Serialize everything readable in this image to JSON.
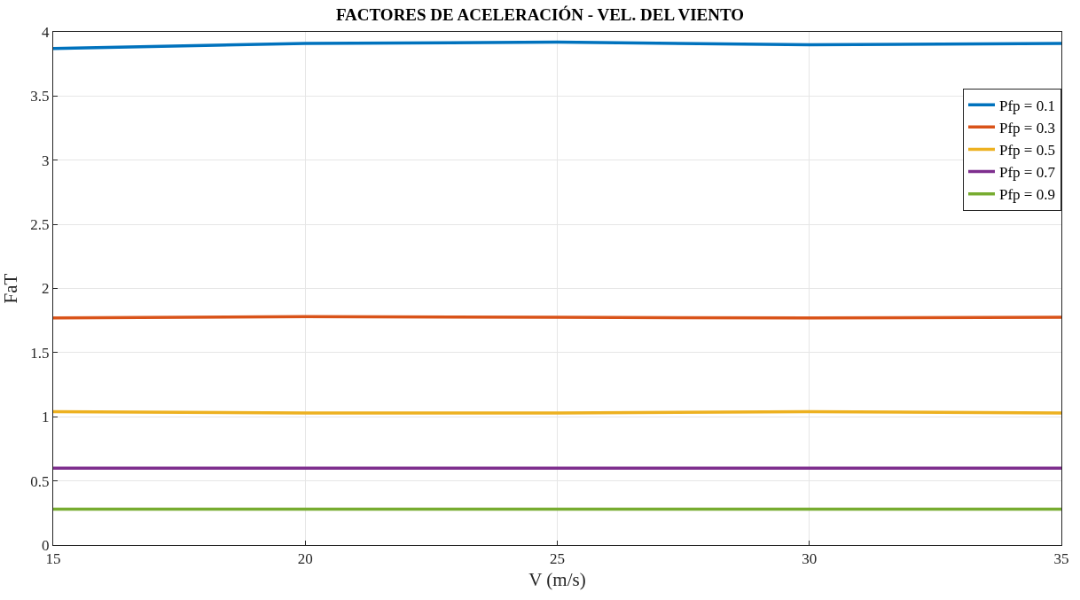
{
  "chart_data": {
    "type": "line",
    "title": "FACTORES DE ACELERACIÓN - VEL. DEL VIENTO",
    "xlabel": "V (m/s)",
    "ylabel": "FaT",
    "x": [
      15,
      20,
      25,
      30,
      35
    ],
    "series": [
      {
        "name": "Pfp = 0.1",
        "color": "#0072bd",
        "values": [
          3.87,
          3.91,
          3.92,
          3.9,
          3.91
        ]
      },
      {
        "name": "Pfp = 0.3",
        "color": "#d95319",
        "values": [
          1.77,
          1.78,
          1.775,
          1.77,
          1.775
        ]
      },
      {
        "name": "Pfp = 0.5",
        "color": "#edb120",
        "values": [
          1.04,
          1.03,
          1.03,
          1.04,
          1.03
        ]
      },
      {
        "name": "Pfp = 0.7",
        "color": "#7e2f8e",
        "values": [
          0.6,
          0.6,
          0.6,
          0.6,
          0.6
        ]
      },
      {
        "name": "Pfp = 0.9",
        "color": "#77ac30",
        "values": [
          0.28,
          0.28,
          0.28,
          0.28,
          0.28
        ]
      }
    ],
    "xlim": [
      15,
      35
    ],
    "xticks": [
      15,
      20,
      25,
      30,
      35
    ],
    "ylim": [
      0,
      4
    ],
    "yticks": [
      0,
      0.5,
      1,
      1.5,
      2,
      2.5,
      3,
      3.5,
      4
    ],
    "grid": true,
    "legend": "top right",
    "marker": "none",
    "line_style": "solid"
  }
}
